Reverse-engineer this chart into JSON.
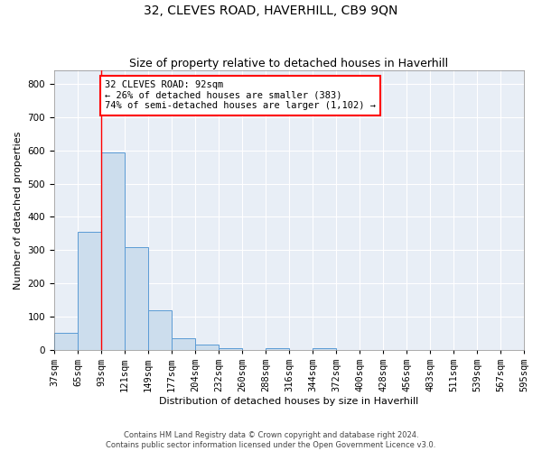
{
  "title": "32, CLEVES ROAD, HAVERHILL, CB9 9QN",
  "subtitle": "Size of property relative to detached houses in Haverhill",
  "xlabel": "Distribution of detached houses by size in Haverhill",
  "ylabel": "Number of detached properties",
  "footer_line1": "Contains HM Land Registry data © Crown copyright and database right 2024.",
  "footer_line2": "Contains public sector information licensed under the Open Government Licence v3.0.",
  "bins": [
    "37sqm",
    "65sqm",
    "93sqm",
    "121sqm",
    "149sqm",
    "177sqm",
    "204sqm",
    "232sqm",
    "260sqm",
    "288sqm",
    "316sqm",
    "344sqm",
    "372sqm",
    "400sqm",
    "428sqm",
    "456sqm",
    "483sqm",
    "511sqm",
    "539sqm",
    "567sqm",
    "595sqm"
  ],
  "bar_values": [
    50,
    355,
    595,
    310,
    120,
    35,
    15,
    5,
    0,
    5,
    0,
    5,
    0,
    0,
    0,
    0,
    0,
    0,
    0,
    0
  ],
  "bar_color": "#ccdded",
  "bar_edge_color": "#5b9bd5",
  "annotation_text": "32 CLEVES ROAD: 92sqm\n← 26% of detached houses are smaller (383)\n74% of semi-detached houses are larger (1,102) →",
  "annotation_box_color": "white",
  "annotation_box_edge": "red",
  "vline_color": "red",
  "ylim": [
    0,
    840
  ],
  "yticks": [
    0,
    100,
    200,
    300,
    400,
    500,
    600,
    700,
    800
  ],
  "background_color": "#e8eef6",
  "grid_color": "white",
  "title_fontsize": 10,
  "subtitle_fontsize": 9,
  "axis_label_fontsize": 8,
  "tick_fontsize": 7.5,
  "annotation_fontsize": 7.5
}
